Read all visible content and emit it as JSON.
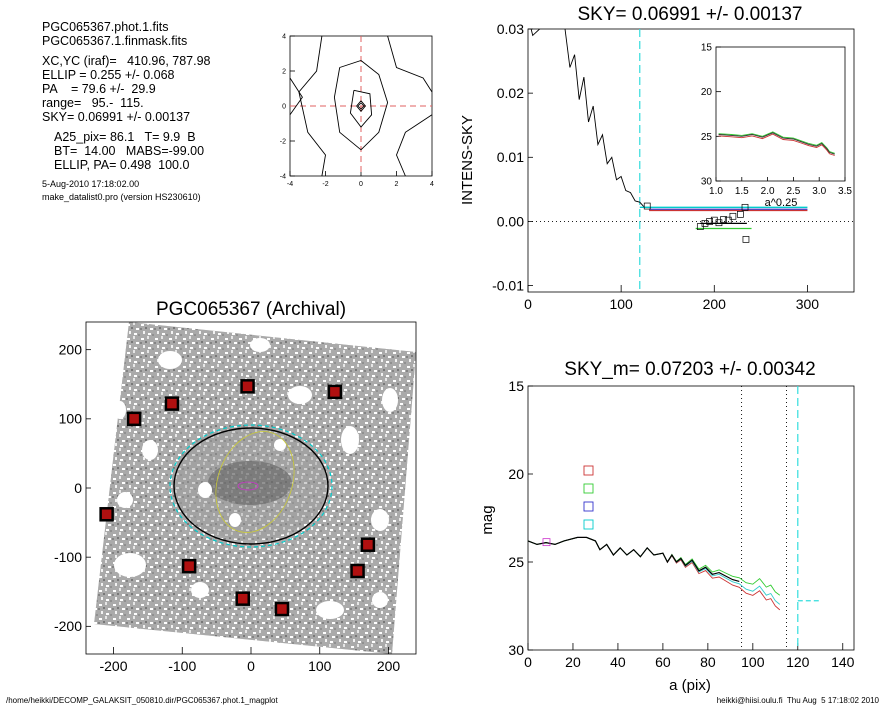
{
  "info": {
    "file1": "PGC065367.phot.1.fits",
    "file2": "PGC065367.1.finmask.fits",
    "xcyc": "XC,YC (iraf)=   410.96, 787.98",
    "ellip": "ELLIP = 0.255 +/- 0.068",
    "pa": "PA    = 79.6 +/-  29.9",
    "range": "range=   95.-  115.",
    "sky": "SKY= 0.06991 +/- 0.00137",
    "a25": "A25_pix= 86.1   T= 9.9  B",
    "bt": "BT=  14.00   MABS=-99.00",
    "ellippa": "ELLIP, PA= 0.498  100.0",
    "date": "5-Aug-2010 17:18:02.00",
    "prog": "make_datalist0.pro (version HS230610)"
  },
  "footer": {
    "left": "/home/heikki/DECOMP_GALAKSIT_050810.dir/PGC065367.phot.1_magplot",
    "right": "heikki@hiisi.oulu.fi  Thu Aug  5 17:18:02 2010"
  },
  "chart_data": [
    {
      "name": "contour",
      "type": "contour",
      "xlim": [
        -4,
        4
      ],
      "ylim": [
        -4,
        4
      ],
      "xticks": [
        "-4",
        "-2",
        "0",
        "2",
        "4"
      ],
      "yticks": [
        "-4",
        "-2",
        "0",
        "2",
        "4"
      ]
    },
    {
      "name": "sky_profile",
      "type": "line",
      "title": "SKY= 0.06991 +/- 0.00137",
      "ylabel": "INTENS-SKY",
      "xlim": [
        0,
        350
      ],
      "ylim": [
        -0.011,
        0.03
      ],
      "xticks": [
        "0",
        "100",
        "200",
        "300"
      ],
      "yticks": [
        "-0.01",
        "0.00",
        "0.01",
        "0.02",
        "0.03"
      ],
      "vline_x": 120,
      "profile": [
        [
          0,
          0.032
        ],
        [
          5,
          0.029
        ],
        [
          20,
          0.031
        ],
        [
          38,
          0.032
        ],
        [
          45,
          0.024
        ],
        [
          50,
          0.026
        ],
        [
          55,
          0.019
        ],
        [
          60,
          0.0225
        ],
        [
          65,
          0.0155
        ],
        [
          70,
          0.018
        ],
        [
          75,
          0.012
        ],
        [
          80,
          0.0135
        ],
        [
          85,
          0.009
        ],
        [
          90,
          0.01
        ],
        [
          95,
          0.0065
        ],
        [
          100,
          0.007
        ],
        [
          105,
          0.0048
        ],
        [
          110,
          0.0045
        ],
        [
          115,
          0.0032
        ],
        [
          120,
          0.003
        ],
        [
          125,
          0.0022
        ],
        [
          130,
          0.0022
        ]
      ],
      "sky_lines": [
        {
          "color": "#00cccc",
          "x": [
            120,
            300
          ],
          "y": 0.0022
        },
        {
          "color": "#3333cc",
          "x": [
            130,
            300
          ],
          "y": 0.0019
        },
        {
          "color": "#cc3333",
          "x": [
            130,
            300
          ],
          "y": 0.0017
        },
        {
          "color": "#33cc33",
          "x": [
            180,
            240
          ],
          "y": -0.0011
        },
        {
          "color": "#000000",
          "x": [
            185,
            235
          ],
          "y": -0.0003
        }
      ],
      "squares": [
        [
          128,
          0.0024
        ],
        [
          185,
          -0.0008
        ],
        [
          190,
          -0.0003
        ],
        [
          195,
          0.0
        ],
        [
          200,
          0.0002
        ],
        [
          205,
          -0.0002
        ],
        [
          210,
          0.0003
        ],
        [
          215,
          0.0002
        ],
        [
          220,
          0.0008
        ],
        [
          228,
          0.0011
        ],
        [
          233,
          0.0022
        ],
        [
          234,
          -0.0028
        ]
      ],
      "inset": {
        "xlabel": "a^0.25",
        "xlim": [
          1.0,
          3.5
        ],
        "ylim": [
          15,
          30
        ],
        "xticks": [
          "1.0",
          "1.5",
          "2.0",
          "2.5",
          "3.0",
          "3.5"
        ],
        "yticks": [
          "15",
          "20",
          "25",
          "30"
        ],
        "profile": [
          [
            1.05,
            24.8
          ],
          [
            1.3,
            24.9
          ],
          [
            1.5,
            25.0
          ],
          [
            1.7,
            24.8
          ],
          [
            1.9,
            25.1
          ],
          [
            2.1,
            24.6
          ],
          [
            2.3,
            25.2
          ],
          [
            2.5,
            25.3
          ],
          [
            2.65,
            25.6
          ],
          [
            2.8,
            25.9
          ],
          [
            2.95,
            26.1
          ],
          [
            3.05,
            25.8
          ],
          [
            3.15,
            26.4
          ],
          [
            3.2,
            26.8
          ],
          [
            3.3,
            27.0
          ]
        ]
      }
    },
    {
      "name": "sky_m_profile",
      "type": "line",
      "title": "SKY_m=  0.07203 +/- 0.00342",
      "xlabel": "a (pix)",
      "ylabel": "mag",
      "xlim": [
        0,
        145
      ],
      "ylim": [
        15,
        30
      ],
      "xticks": [
        "0",
        "20",
        "40",
        "60",
        "80",
        "100",
        "120",
        "140"
      ],
      "yticks": [
        "15",
        "20",
        "25",
        "30"
      ],
      "dotted_x": [
        95,
        115
      ],
      "dashed_x": 120,
      "sky_level": 27.2,
      "legend_colors": [
        "#cc3333",
        "#33cc33",
        "#3333cc",
        "#00cccc"
      ],
      "profile": [
        [
          0,
          23.8
        ],
        [
          4,
          24.0
        ],
        [
          8,
          23.9
        ],
        [
          12,
          24.0
        ],
        [
          16,
          23.8
        ],
        [
          22,
          23.6
        ],
        [
          26,
          23.6
        ],
        [
          30,
          23.8
        ],
        [
          32,
          24.3
        ],
        [
          35,
          24.0
        ],
        [
          38,
          24.6
        ],
        [
          41,
          24.2
        ],
        [
          44,
          24.6
        ],
        [
          47,
          24.3
        ],
        [
          50,
          24.7
        ],
        [
          53,
          24.2
        ],
        [
          56,
          24.6
        ],
        [
          60,
          24.5
        ],
        [
          62,
          25.0
        ],
        [
          64,
          24.6
        ],
        [
          66,
          25.0
        ],
        [
          68,
          24.8
        ],
        [
          70,
          25.2
        ],
        [
          73,
          24.9
        ],
        [
          76,
          25.5
        ],
        [
          79,
          25.3
        ],
        [
          82,
          25.7
        ],
        [
          85,
          25.6
        ],
        [
          88,
          25.8
        ],
        [
          91,
          26.0
        ],
        [
          94,
          26.1
        ],
        [
          97,
          26.4
        ],
        [
          100,
          26.5
        ],
        [
          103,
          26.2
        ],
        [
          106,
          26.7
        ],
        [
          108,
          26.6
        ],
        [
          110,
          27.0
        ],
        [
          112,
          27.2
        ]
      ],
      "offsets": {
        "red": 0.5,
        "green": -0.3,
        "cyan": 0.2
      }
    },
    {
      "name": "galaxy_image",
      "type": "image",
      "title": "PGC065367 (Archival)",
      "xlim": [
        -240,
        240
      ],
      "ylim": [
        -240,
        240
      ],
      "xticks": [
        "-200",
        "-100",
        "0",
        "100",
        "200"
      ],
      "yticks": [
        "-200",
        "-100",
        "0",
        "100",
        "200"
      ],
      "stars": [
        [
          -170,
          100
        ],
        [
          -115,
          122
        ],
        [
          -5,
          147
        ],
        [
          122,
          139
        ],
        [
          -210,
          -38
        ],
        [
          -90,
          -113
        ],
        [
          -12,
          -160
        ],
        [
          45,
          -175
        ],
        [
          155,
          -120
        ],
        [
          170,
          -82
        ]
      ]
    }
  ]
}
